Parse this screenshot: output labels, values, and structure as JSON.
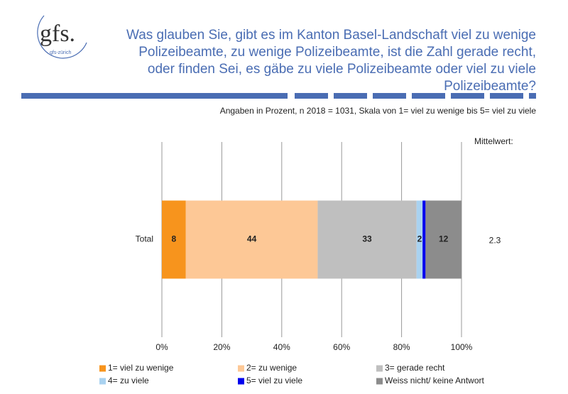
{
  "logo": {
    "text": "gfs.",
    "subtext": "gfs-zürich"
  },
  "chart_data": {
    "type": "stacked-barh",
    "title": "Was glauben Sie, gibt es im Kanton Basel-Landschaft viel zu wenige Polizeibeamte, zu wenige Polizeibeamte, ist die Zahl gerade recht, oder finden Sei, es gäbe zu viele Polizeibeamte oder viel zu viele Polizeibeamte?",
    "subtitle": "Angaben in Prozent, n 2018 = 1031, Skala von 1= viel zu wenige bis 5= viel zu viele",
    "categories": [
      "Total"
    ],
    "series": [
      {
        "name": "1= viel zu wenige",
        "color": "#f7941d",
        "values": [
          8
        ]
      },
      {
        "name": "2= zu wenige",
        "color": "#fdc896",
        "values": [
          44
        ]
      },
      {
        "name": "3= gerade recht",
        "color": "#bfbfbf",
        "values": [
          33
        ]
      },
      {
        "name": "4= zu viele",
        "color": "#a9d2f0",
        "values": [
          2
        ]
      },
      {
        "name": "5= viel zu viele",
        "color": "#0000ee",
        "values": [
          1
        ]
      },
      {
        "name": "Weiss nicht/ keine Antwort",
        "color": "#8c8c8c",
        "values": [
          12
        ]
      }
    ],
    "mean_label": "Mittelwert:",
    "mean_values": [
      2.3
    ],
    "xlim": [
      0,
      100
    ],
    "xticks": [
      {
        "value": 0,
        "label": "0%"
      },
      {
        "value": 20,
        "label": "20%"
      },
      {
        "value": 40,
        "label": "40%"
      },
      {
        "value": 60,
        "label": "60%"
      },
      {
        "value": 80,
        "label": "80%"
      },
      {
        "value": 100,
        "label": "100%"
      }
    ],
    "grid": true
  }
}
